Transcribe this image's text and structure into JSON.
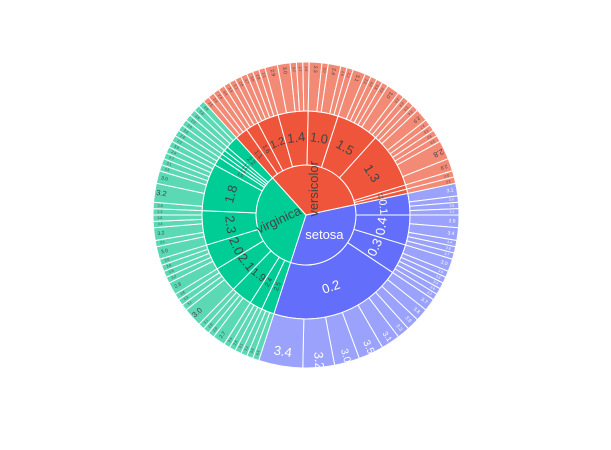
{
  "chart_data": {
    "type": "sunburst",
    "title": "",
    "colors": {
      "setosa": "#636efa",
      "versicolor": "#ef553b",
      "virginica": "#00cc96",
      "ring_light_setosa": "#9aa2fb",
      "ring_light_versicolor": "#f38a75",
      "ring_light_virginica": "#5bd9b4"
    },
    "roots": [
      {
        "name": "setosa",
        "label": "setosa",
        "value": 50,
        "children": [
          {
            "name": "0.1",
            "value": 5,
            "children": [
              {
                "name": "3.1",
                "value": 2
              },
              {
                "name": "3.0",
                "value": 1
              },
              {
                "name": "3.6",
                "value": 1
              },
              {
                "name": "4.1",
                "value": 1
              }
            ]
          },
          {
            "name": "0.4",
            "value": 7,
            "children": [
              {
                "name": "3.9",
                "value": 2
              },
              {
                "name": "3.4",
                "value": 2
              },
              {
                "name": "4.4",
                "value": 1
              },
              {
                "name": "3.8",
                "value": 1
              },
              {
                "name": "3.7",
                "value": 1
              }
            ]
          },
          {
            "name": "0.3",
            "value": 7,
            "children": [
              {
                "name": "3.0",
                "value": 2
              },
              {
                "name": "3.4",
                "value": 1
              },
              {
                "name": "3.5",
                "value": 1
              },
              {
                "name": "3.3",
                "value": 1
              },
              {
                "name": "3.8",
                "value": 1
              },
              {
                "name": "2.3",
                "value": 1
              }
            ]
          },
          {
            "name": "0.2",
            "value": 31,
            "children": [
              {
                "name": "3.7",
                "value": 2
              },
              {
                "name": "3.8",
                "value": 2
              },
              {
                "name": "3.6",
                "value": 2
              },
              {
                "name": "3.3",
                "value": 2
              },
              {
                "name": "3.1",
                "value": 3
              },
              {
                "name": "3.5",
                "value": 4
              },
              {
                "name": "3.0",
                "value": 4
              },
              {
                "name": "3.2",
                "value": 5
              },
              {
                "name": "3.4",
                "value": 7
              }
            ]
          }
        ]
      },
      {
        "name": "virginica",
        "label": "virginica",
        "value": 50,
        "children": [
          {
            "name": "2.5",
            "value": 3,
            "children": [
              {
                "name": "3.3",
                "value": 1
              },
              {
                "name": "3.6",
                "value": 1
              },
              {
                "name": "3.1",
                "value": 1
              }
            ]
          },
          {
            "name": "2.4",
            "value": 3,
            "children": [
              {
                "name": "3.1",
                "value": 1
              },
              {
                "name": "2.8",
                "value": 1
              },
              {
                "name": "3.4",
                "value": 1
              }
            ]
          },
          {
            "name": "1.9",
            "value": 5,
            "children": [
              {
                "name": "2.7",
                "value": 2
              },
              {
                "name": "2.5",
                "value": 1
              },
              {
                "name": "2.8",
                "value": 1
              },
              {
                "name": "3.1",
                "value": 1
              }
            ]
          },
          {
            "name": "2.1",
            "value": 6,
            "children": [
              {
                "name": "3.0",
                "value": 3
              },
              {
                "name": "3.1",
                "value": 1
              },
              {
                "name": "3.3",
                "value": 1
              },
              {
                "name": "2.8",
                "value": 1
              }
            ]
          },
          {
            "name": "2.0",
            "value": 6,
            "children": [
              {
                "name": "2.8",
                "value": 2
              },
              {
                "name": "3.2",
                "value": 1
              },
              {
                "name": "2.5",
                "value": 1
              },
              {
                "name": "3.8",
                "value": 1
              },
              {
                "name": "3.0",
                "value": 1
              }
            ]
          },
          {
            "name": "2.3",
            "value": 8,
            "children": [
              {
                "name": "3.0",
                "value": 2
              },
              {
                "name": "3.1",
                "value": 1
              },
              {
                "name": "3.2",
                "value": 2
              },
              {
                "name": "3.4",
                "value": 1
              },
              {
                "name": "2.6",
                "value": 1
              },
              {
                "name": "2.3",
                "value": 1
              }
            ]
          },
          {
            "name": "1.8",
            "value": 11,
            "children": [
              {
                "name": "2.8",
                "value": 1
              },
              {
                "name": "3.2",
                "value": 3
              },
              {
                "name": "3.0",
                "value": 2
              },
              {
                "name": "2.5",
                "value": 1
              },
              {
                "name": "3.1",
                "value": 1
              },
              {
                "name": "2.7",
                "value": 1
              },
              {
                "name": "2.9",
                "value": 1
              },
              {
                "name": "3.0",
                "value": 1
              }
            ]
          },
          {
            "name": "1.5",
            "value": 2,
            "children": [
              {
                "name": "2.2",
                "value": 1
              },
              {
                "name": "2.8",
                "value": 1
              }
            ]
          },
          {
            "name": "1.4",
            "value": 1,
            "children": [
              {
                "name": "2.6",
                "value": 1
              }
            ]
          },
          {
            "name": "1.6",
            "value": 1,
            "children": [
              {
                "name": "3.0",
                "value": 1
              }
            ]
          },
          {
            "name": "1.7",
            "value": 1,
            "children": [
              {
                "name": "2.5",
                "value": 1
              }
            ]
          },
          {
            "name": "2.2",
            "value": 3,
            "children": [
              {
                "name": "3.8",
                "value": 1
              },
              {
                "name": "2.8",
                "value": 1
              },
              {
                "name": "3.0",
                "value": 1
              }
            ]
          }
        ]
      },
      {
        "name": "versicolor",
        "label": "versicolor",
        "value": 50,
        "children": [
          {
            "name": "1.1",
            "value": 3,
            "children": [
              {
                "name": "2.5",
                "value": 1
              },
              {
                "name": "2.4",
                "value": 1
              },
              {
                "name": "2.6",
                "value": 1
              }
            ]
          },
          {
            "name": "1.6",
            "value": 3,
            "children": [
              {
                "name": "3.4",
                "value": 1
              },
              {
                "name": "3.3",
                "value": 1
              },
              {
                "name": "2.7",
                "value": 1
              }
            ]
          },
          {
            "name": "1.2",
            "value": 5,
            "children": [
              {
                "name": "2.6",
                "value": 1
              },
              {
                "name": "2.7",
                "value": 1
              },
              {
                "name": "3.0",
                "value": 1
              },
              {
                "name": "2.8",
                "value": 1
              },
              {
                "name": "2.2",
                "value": 1
              }
            ]
          },
          {
            "name": "1.4",
            "value": 7,
            "children": [
              {
                "name": "2.9",
                "value": 2
              },
              {
                "name": "3.0",
                "value": 2
              },
              {
                "name": "3.2",
                "value": 1
              },
              {
                "name": "2.7",
                "value": 1
              },
              {
                "name": "2.6",
                "value": 1
              }
            ]
          },
          {
            "name": "1.0",
            "value": 7,
            "children": [
              {
                "name": "2.3",
                "value": 2
              },
              {
                "name": "2.0",
                "value": 1
              },
              {
                "name": "2.4",
                "value": 2
              },
              {
                "name": "2.6",
                "value": 1
              },
              {
                "name": "2.2",
                "value": 1
              }
            ]
          },
          {
            "name": "1.5",
            "value": 10,
            "children": [
              {
                "name": "3.1",
                "value": 2
              },
              {
                "name": "2.2",
                "value": 1
              },
              {
                "name": "3.2",
                "value": 1
              },
              {
                "name": "2.8",
                "value": 1
              },
              {
                "name": "2.9",
                "value": 1
              },
              {
                "name": "3.0",
                "value": 2
              },
              {
                "name": "2.3",
                "value": 1
              },
              {
                "name": "2.4",
                "value": 1
              }
            ]
          },
          {
            "name": "1.3",
            "value": 13,
            "children": [
              {
                "name": "2.3",
                "value": 1
              },
              {
                "name": "2.4",
                "value": 1
              },
              {
                "name": "2.9",
                "value": 2
              },
              {
                "name": "2.7",
                "value": 1
              },
              {
                "name": "2.5",
                "value": 1
              },
              {
                "name": "3.0",
                "value": 1
              },
              {
                "name": "2.6",
                "value": 1
              },
              {
                "name": "2.8",
                "value": 3
              },
              {
                "name": "2.9",
                "value": 2
              }
            ]
          },
          {
            "name": "1.7",
            "value": 1,
            "children": [
              {
                "name": "3.0",
                "value": 1
              }
            ]
          },
          {
            "name": "1.8",
            "value": 1,
            "children": [
              {
                "name": "3.2",
                "value": 1
              }
            ]
          }
        ]
      }
    ]
  }
}
